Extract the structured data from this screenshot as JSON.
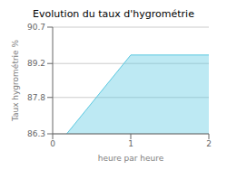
{
  "chart_data": {
    "type": "area",
    "title": "Evolution du taux d'hygrométrie",
    "xlabel": "heure par heure",
    "ylabel": "Taux hygrométrie %",
    "x": [
      0.18,
      1.0,
      2.0
    ],
    "values": [
      86.3,
      89.55,
      89.55
    ],
    "color": "#5bc8e0",
    "xlim": [
      0,
      2
    ],
    "xticks": [
      0,
      1,
      2
    ],
    "ylim": [
      86.3,
      90.7
    ],
    "yticks": [
      86.3,
      87.8,
      89.2,
      90.7
    ],
    "grid": true
  }
}
